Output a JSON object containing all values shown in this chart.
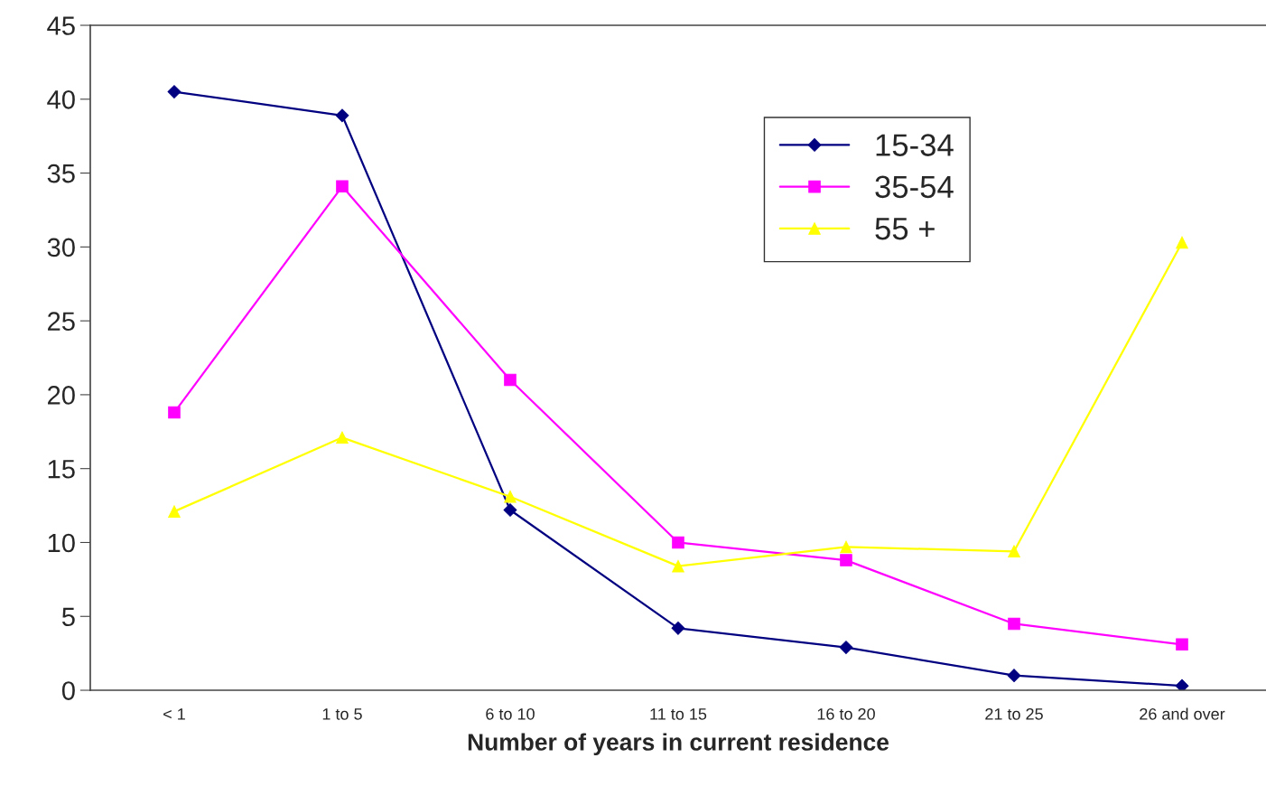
{
  "chart_data": {
    "type": "line",
    "xlabel": "Number of years in current residence",
    "categories": [
      "< 1",
      "1 to 5",
      "6 to 10",
      "11 to 15",
      "16 to 20",
      "21 to 25",
      "26 and over"
    ],
    "series": [
      {
        "name": "15-34",
        "color": "#000080",
        "marker": "diamond",
        "values": [
          40.5,
          38.9,
          12.2,
          4.2,
          2.9,
          1.0,
          0.3
        ]
      },
      {
        "name": "35-54",
        "color": "#ff00ff",
        "marker": "square",
        "values": [
          18.8,
          34.1,
          21.0,
          10.0,
          8.8,
          4.5,
          3.1
        ]
      },
      {
        "name": "55 +",
        "color": "#ffff00",
        "marker": "triangle",
        "values": [
          12.1,
          17.1,
          13.1,
          8.4,
          9.7,
          9.4,
          30.3
        ]
      }
    ],
    "ylim": [
      0,
      45
    ],
    "yticks": [
      0,
      5,
      10,
      15,
      20,
      25,
      30,
      35,
      40,
      45
    ],
    "grid": false,
    "legend": "top right"
  }
}
